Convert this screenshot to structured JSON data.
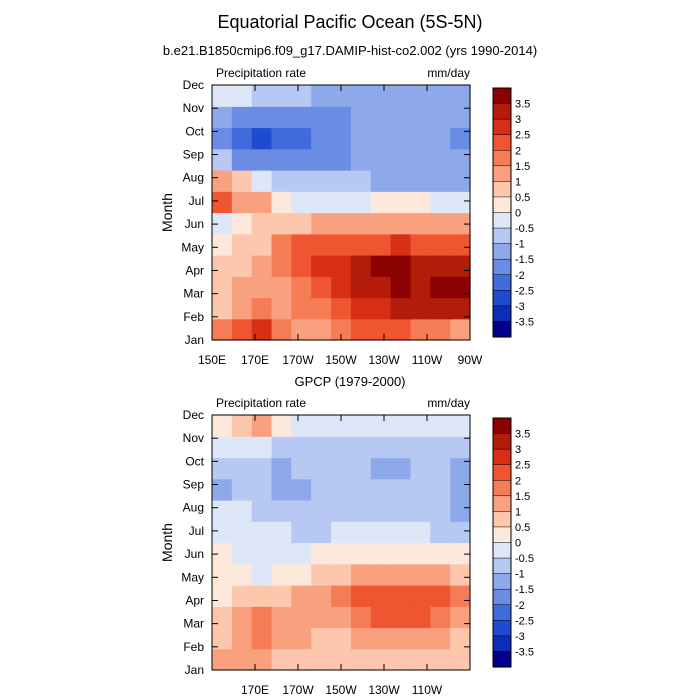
{
  "figure": {
    "title": "Equatorial Pacific Ocean (5S-5N)",
    "subtitle": "b.e21.B1850cmip6.f09_g17.DAMIP-hist-co2.002 (yrs 1990-2014)"
  },
  "colorbar": {
    "levels": [
      "3.5",
      "3",
      "2.5",
      "2",
      "1.5",
      "1",
      "0.5",
      "0",
      "-0.5",
      "-1",
      "-1.5",
      "-2",
      "-2.5",
      "-3",
      "-3.5"
    ],
    "colors": [
      "#8b0000",
      "#b41c0a",
      "#d62f16",
      "#ef5530",
      "#f67c55",
      "#f9a17f",
      "#fcc7ad",
      "#fde8dc",
      "#dde7f8",
      "#b7c9f2",
      "#8ea9ea",
      "#6a8ce4",
      "#3f6bdc",
      "#1f4bd0",
      "#0e2db6",
      "#00008b"
    ]
  },
  "chart_data": [
    {
      "type": "heatmap",
      "title": "",
      "left_label": "Precipitation rate",
      "right_label": "mm/day",
      "ylabel": "Month",
      "xlabel": "",
      "y_categories": [
        "Jan",
        "Feb",
        "Mar",
        "Apr",
        "May",
        "Jun",
        "Jul",
        "Aug",
        "Sep",
        "Oct",
        "Nov",
        "Dec"
      ],
      "x_tick_labels": [
        "150E",
        "170E",
        "170W",
        "150W",
        "130W",
        "110W",
        "90W"
      ],
      "x_values": [
        150,
        170,
        190,
        210,
        230,
        250,
        270
      ],
      "xlim": [
        150,
        270
      ],
      "levels": [
        -3.5,
        -3,
        -2.5,
        -2,
        -1.5,
        -1,
        -0.5,
        0,
        0.5,
        1,
        1.5,
        2,
        2.5,
        3,
        3.5
      ],
      "grid": [
        [
          1.5,
          2.0,
          2.5,
          1.5,
          1.0,
          1.0,
          1.5,
          2.0,
          2.0,
          2.0,
          1.5,
          1.5,
          1.0
        ],
        [
          0.5,
          1.0,
          1.5,
          1.0,
          1.5,
          1.5,
          2.0,
          2.5,
          2.5,
          3.0,
          3.0,
          3.0,
          3.0
        ],
        [
          0.5,
          1.0,
          1.0,
          1.0,
          1.5,
          2.0,
          2.5,
          3.0,
          3.0,
          3.5,
          3.0,
          3.5,
          3.5
        ],
        [
          0.5,
          0.5,
          1.0,
          1.5,
          2.0,
          2.5,
          2.5,
          3.0,
          3.5,
          3.5,
          3.0,
          3.0,
          3.0
        ],
        [
          0.0,
          0.5,
          0.5,
          1.5,
          2.0,
          2.0,
          2.0,
          2.0,
          2.0,
          2.5,
          2.0,
          2.0,
          2.0
        ],
        [
          -0.5,
          0.0,
          0.5,
          0.5,
          0.5,
          1.0,
          1.0,
          1.0,
          1.0,
          1.0,
          1.0,
          1.0,
          1.0
        ],
        [
          2.0,
          1.0,
          1.0,
          0.0,
          -0.5,
          -0.5,
          -0.5,
          -0.5,
          0.0,
          0.0,
          0.0,
          -0.5,
          -0.5
        ],
        [
          1.0,
          0.5,
          -0.5,
          -1.0,
          -1.0,
          -1.0,
          -1.0,
          -1.0,
          -1.5,
          -1.5,
          -1.5,
          -1.5,
          -1.5
        ],
        [
          -1.0,
          -2.0,
          -2.0,
          -2.0,
          -2.0,
          -2.0,
          -2.0,
          -1.5,
          -1.5,
          -1.5,
          -1.5,
          -1.5,
          -1.5
        ],
        [
          -2.0,
          -2.5,
          -3.0,
          -2.5,
          -2.5,
          -2.0,
          -2.0,
          -1.5,
          -1.5,
          -1.5,
          -1.5,
          -1.5,
          -2.0
        ],
        [
          -1.5,
          -2.0,
          -2.0,
          -2.0,
          -2.0,
          -2.0,
          -2.0,
          -1.5,
          -1.5,
          -1.5,
          -1.5,
          -1.5,
          -1.5
        ],
        [
          -0.5,
          -0.5,
          -1.0,
          -1.0,
          -1.0,
          -1.5,
          -1.5,
          -1.5,
          -1.5,
          -1.5,
          -1.5,
          -1.5,
          -1.5
        ]
      ]
    },
    {
      "type": "heatmap",
      "title": "GPCP (1979-2000)",
      "left_label": "Precipitation rate",
      "right_label": "mm/day",
      "ylabel": "Month",
      "xlabel": "",
      "y_categories": [
        "Jan",
        "Feb",
        "Mar",
        "Apr",
        "May",
        "Jun",
        "Jul",
        "Aug",
        "Sep",
        "Oct",
        "Nov",
        "Dec"
      ],
      "x_tick_labels": [
        "170E",
        "170W",
        "150W",
        "130W",
        "110W"
      ],
      "x_values": [
        170,
        190,
        210,
        230,
        250
      ],
      "xlim": [
        150,
        270
      ],
      "levels": [
        -3.5,
        -3,
        -2.5,
        -2,
        -1.5,
        -1,
        -0.5,
        0,
        0.5,
        1,
        1.5,
        2,
        2.5,
        3,
        3.5
      ],
      "grid": [
        [
          1.0,
          1.0,
          1.0,
          0.5,
          0.5,
          0.5,
          0.5,
          0.5,
          0.5,
          0.5,
          0.5,
          0.5,
          0.5
        ],
        [
          0.5,
          1.0,
          1.5,
          1.0,
          1.0,
          0.5,
          0.5,
          1.0,
          1.0,
          1.0,
          1.0,
          1.0,
          0.5
        ],
        [
          0.5,
          1.0,
          1.5,
          1.0,
          1.0,
          1.0,
          1.0,
          1.5,
          2.0,
          2.0,
          2.0,
          1.5,
          1.0
        ],
        [
          0.0,
          0.5,
          0.5,
          0.5,
          1.0,
          1.0,
          1.5,
          2.0,
          2.0,
          2.0,
          2.0,
          2.0,
          1.5
        ],
        [
          0.0,
          0.0,
          -0.5,
          0.0,
          0.0,
          0.5,
          0.5,
          1.0,
          1.0,
          1.0,
          1.0,
          1.0,
          0.5
        ],
        [
          0.0,
          -0.5,
          -0.5,
          -0.5,
          -0.5,
          0.0,
          0.0,
          0.0,
          0.0,
          0.0,
          0.0,
          0.0,
          0.0
        ],
        [
          -0.5,
          -0.5,
          -0.5,
          -0.5,
          -1.0,
          -1.0,
          -0.5,
          -0.5,
          -0.5,
          -0.5,
          -0.5,
          -1.0,
          -1.0
        ],
        [
          -0.5,
          -0.5,
          -1.0,
          -1.0,
          -1.0,
          -1.0,
          -1.0,
          -1.0,
          -1.0,
          -1.0,
          -1.0,
          -1.0,
          -1.5
        ],
        [
          -1.5,
          -1.0,
          -1.0,
          -1.5,
          -1.5,
          -1.0,
          -1.0,
          -1.0,
          -1.0,
          -1.0,
          -1.0,
          -1.0,
          -1.5
        ],
        [
          -1.0,
          -1.0,
          -1.0,
          -1.5,
          -1.0,
          -1.0,
          -1.0,
          -1.0,
          -1.5,
          -1.5,
          -1.0,
          -1.0,
          -1.5
        ],
        [
          -0.5,
          -0.5,
          -0.5,
          -1.0,
          -1.0,
          -1.0,
          -1.0,
          -1.0,
          -1.0,
          -1.0,
          -1.0,
          -1.0,
          -1.0
        ],
        [
          0.0,
          0.5,
          1.0,
          0.0,
          -0.5,
          -0.5,
          -0.5,
          -0.5,
          -0.5,
          -0.5,
          -0.5,
          -0.5,
          -0.5
        ]
      ]
    }
  ]
}
